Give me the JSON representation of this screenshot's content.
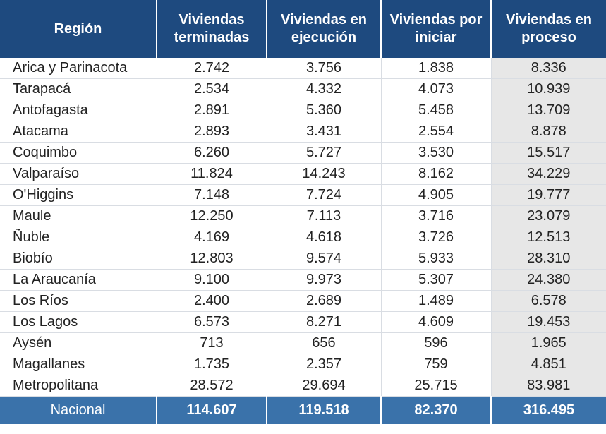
{
  "headers": [
    "Región",
    "Viviendas terminadas",
    "Viviendas en ejecución",
    "Viviendas por iniciar",
    "Viviendas en proceso"
  ],
  "rows": [
    [
      "Arica y Parinacota",
      "2.742",
      "3.756",
      "1.838",
      "8.336"
    ],
    [
      "Tarapacá",
      "2.534",
      "4.332",
      "4.073",
      "10.939"
    ],
    [
      "Antofagasta",
      "2.891",
      "5.360",
      "5.458",
      "13.709"
    ],
    [
      "Atacama",
      "2.893",
      "3.431",
      "2.554",
      "8.878"
    ],
    [
      "Coquimbo",
      "6.260",
      "5.727",
      "3.530",
      "15.517"
    ],
    [
      "Valparaíso",
      "11.824",
      "14.243",
      "8.162",
      "34.229"
    ],
    [
      "O'Higgins",
      "7.148",
      "7.724",
      "4.905",
      "19.777"
    ],
    [
      "Maule",
      "12.250",
      "7.113",
      "3.716",
      "23.079"
    ],
    [
      "Ñuble",
      "4.169",
      "4.618",
      "3.726",
      "12.513"
    ],
    [
      "Biobío",
      "12.803",
      "9.574",
      "5.933",
      "28.310"
    ],
    [
      "La Araucanía",
      "9.100",
      "9.973",
      "5.307",
      "24.380"
    ],
    [
      "Los Ríos",
      "2.400",
      "2.689",
      "1.489",
      "6.578"
    ],
    [
      "Los Lagos",
      "6.573",
      "8.271",
      "4.609",
      "19.453"
    ],
    [
      "Aysén",
      "713",
      "656",
      "596",
      "1.965"
    ],
    [
      "Magallanes",
      "1.735",
      "2.357",
      "759",
      "4.851"
    ],
    [
      "Metropolitana",
      "28.572",
      "29.694",
      "25.715",
      "83.981"
    ]
  ],
  "total": [
    "Nacional",
    "114.607",
    "119.518",
    "82.370",
    "316.495"
  ],
  "colors": {
    "header_bg": "#1e4a7f",
    "total_bg": "#3a72aa",
    "proceso_bg": "#e7e7e7",
    "grid": "#d9dde3"
  }
}
